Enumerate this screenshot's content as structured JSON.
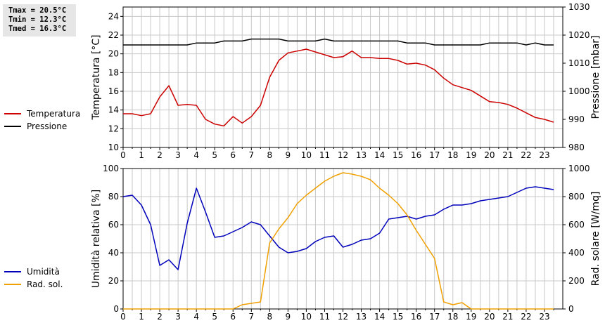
{
  "stats": {
    "tmax": "Tmax = 20.5°C",
    "tmin": "Tmin = 12.3°C",
    "tmed": "Tmed = 16.3°C"
  },
  "colors": {
    "temperature": "#cc0000",
    "pressure": "#000000",
    "humidity": "#0000bb",
    "radiation": "#f0a000",
    "grid": "#c8c8c8"
  },
  "chart_data": [
    {
      "type": "line",
      "legend_placement": "left",
      "grid": true,
      "x_ticks": [
        0,
        1,
        2,
        3,
        4,
        5,
        6,
        7,
        8,
        9,
        10,
        11,
        12,
        13,
        14,
        15,
        16,
        17,
        18,
        19,
        20,
        21,
        22,
        23
      ],
      "xlim": [
        0,
        24
      ],
      "left_axis": {
        "label": "Temperatura [°C]",
        "ylim": [
          10,
          25
        ],
        "ticks": [
          10,
          12,
          14,
          16,
          18,
          20,
          22,
          24
        ]
      },
      "right_axis": {
        "label": "Pressione [mbar]",
        "ylim": [
          980,
          1030
        ],
        "ticks": [
          980,
          990,
          1000,
          1010,
          1020,
          1030
        ]
      },
      "series": [
        {
          "name": "Temperatura",
          "axis": "left",
          "color_key": "temperature",
          "x": [
            0,
            0.5,
            1,
            1.5,
            2,
            2.5,
            3,
            3.5,
            4,
            4.5,
            5,
            5.5,
            6,
            6.5,
            7,
            7.5,
            8,
            8.5,
            9,
            9.5,
            10,
            10.5,
            11,
            11.5,
            12,
            12.5,
            13,
            13.5,
            14,
            14.5,
            15,
            15.5,
            16,
            16.5,
            17,
            17.5,
            18,
            18.5,
            19,
            19.5,
            20,
            20.5,
            21,
            21.5,
            22,
            22.5,
            23,
            23.5
          ],
          "y": [
            13.6,
            13.6,
            13.4,
            13.6,
            15.4,
            16.6,
            14.5,
            14.6,
            14.5,
            13.0,
            12.5,
            12.3,
            13.3,
            12.6,
            13.3,
            14.5,
            17.5,
            19.3,
            20.1,
            20.3,
            20.5,
            20.2,
            19.9,
            19.6,
            19.7,
            20.3,
            19.6,
            19.6,
            19.5,
            19.5,
            19.3,
            18.9,
            19.0,
            18.8,
            18.3,
            17.4,
            16.7,
            16.4,
            16.1,
            15.5,
            14.9,
            14.8,
            14.6,
            14.2,
            13.7,
            13.2,
            13.0,
            12.7
          ]
        },
        {
          "name": "Pressione",
          "axis": "right",
          "color_key": "pressure",
          "x": [
            0,
            0.5,
            1,
            1.5,
            2,
            2.5,
            3,
            3.5,
            4,
            4.5,
            5,
            5.5,
            6,
            6.5,
            7,
            7.5,
            8,
            8.5,
            9,
            9.5,
            10,
            10.5,
            11,
            11.5,
            12,
            12.5,
            13,
            13.5,
            14,
            14.5,
            15,
            15.5,
            16,
            16.5,
            17,
            17.5,
            18,
            18.5,
            19,
            19.5,
            20,
            20.5,
            21,
            21.5,
            22,
            22.5,
            23,
            23.5
          ],
          "y": [
            1016.5,
            1016.5,
            1016.5,
            1016.5,
            1016.5,
            1016.5,
            1016.5,
            1016.5,
            1017.2,
            1017.2,
            1017.2,
            1017.9,
            1017.9,
            1017.9,
            1018.6,
            1018.6,
            1018.6,
            1018.6,
            1017.9,
            1017.9,
            1017.9,
            1017.9,
            1018.6,
            1017.9,
            1017.9,
            1017.9,
            1017.9,
            1017.9,
            1017.9,
            1017.9,
            1017.9,
            1017.2,
            1017.2,
            1017.2,
            1016.5,
            1016.5,
            1016.5,
            1016.5,
            1016.5,
            1016.5,
            1017.2,
            1017.2,
            1017.2,
            1017.2,
            1016.5,
            1017.2,
            1016.5,
            1016.5
          ]
        }
      ]
    },
    {
      "type": "line",
      "legend_placement": "left",
      "grid": true,
      "x_ticks": [
        0,
        1,
        2,
        3,
        4,
        5,
        6,
        7,
        8,
        9,
        10,
        11,
        12,
        13,
        14,
        15,
        16,
        17,
        18,
        19,
        20,
        21,
        22,
        23
      ],
      "xlim": [
        0,
        24
      ],
      "left_axis": {
        "label": "Umidità relativa [%]",
        "ylim": [
          0,
          100
        ],
        "ticks": [
          0,
          20,
          40,
          60,
          80,
          100
        ]
      },
      "right_axis": {
        "label": "Rad. solare [W/mq]",
        "ylim": [
          0,
          1000
        ],
        "ticks": [
          0,
          200,
          400,
          600,
          800,
          1000
        ]
      },
      "series": [
        {
          "name": "Umidità",
          "axis": "left",
          "color_key": "humidity",
          "x": [
            0,
            0.5,
            1,
            1.5,
            2,
            2.5,
            3,
            3.5,
            4,
            4.5,
            5,
            5.5,
            6,
            6.5,
            7,
            7.5,
            8,
            8.5,
            9,
            9.5,
            10,
            10.5,
            11,
            11.5,
            12,
            12.5,
            13,
            13.5,
            14,
            14.5,
            15,
            15.5,
            16,
            16.5,
            17,
            17.5,
            18,
            18.5,
            19,
            19.5,
            20,
            20.5,
            21,
            21.5,
            22,
            22.5,
            23,
            23.5
          ],
          "y": [
            80,
            81,
            74,
            60,
            31,
            35,
            28,
            61,
            86,
            69,
            51,
            52,
            55,
            58,
            62,
            60,
            52,
            44,
            40,
            41,
            43,
            48,
            51,
            52,
            44,
            46,
            49,
            50,
            54,
            64,
            65,
            66,
            64,
            66,
            67,
            71,
            74,
            74,
            75,
            77,
            78,
            79,
            80,
            83,
            86,
            87,
            86,
            85
          ]
        },
        {
          "name": "Rad. sol.",
          "axis": "right",
          "color_key": "radiation",
          "x": [
            0,
            0.5,
            1,
            1.5,
            2,
            2.5,
            3,
            3.5,
            4,
            4.5,
            5,
            5.5,
            6,
            6.5,
            7,
            7.5,
            8,
            8.5,
            9,
            9.5,
            10,
            10.5,
            11,
            11.5,
            12,
            12.5,
            13,
            13.5,
            14,
            14.5,
            15,
            15.5,
            16,
            16.5,
            17,
            17.5,
            18,
            18.5,
            19,
            19.5,
            20,
            20.5,
            21,
            21.5,
            22,
            22.5,
            23,
            23.5
          ],
          "y": [
            0,
            0,
            0,
            0,
            0,
            0,
            0,
            0,
            0,
            0,
            0,
            0,
            0,
            30,
            40,
            50,
            470,
            570,
            650,
            750,
            810,
            860,
            910,
            945,
            970,
            960,
            945,
            920,
            860,
            810,
            750,
            670,
            560,
            460,
            360,
            50,
            30,
            45,
            0,
            0,
            0,
            0,
            0,
            0,
            0,
            0,
            0,
            0
          ]
        }
      ]
    }
  ]
}
